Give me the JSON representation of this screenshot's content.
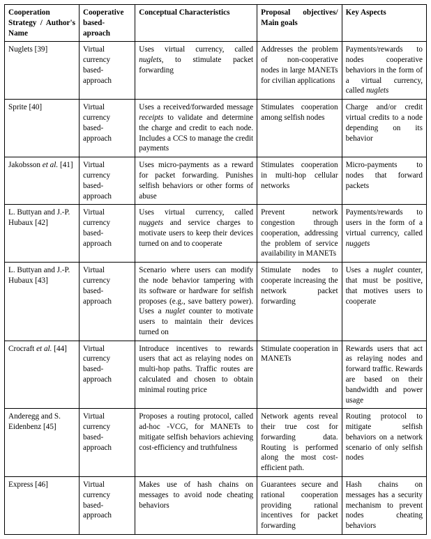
{
  "columns": [
    "Cooperation Strategy / Author's Name",
    "Cooperative based-aproach",
    "Conceptual Characteristics",
    "Proposal objectives/ Main goals",
    "Key Aspects"
  ],
  "rows": [
    {
      "strategy": "Nuglets [39]",
      "approach": "Virtual currency based-approach",
      "concept_pre": "Uses virtual currency, called ",
      "concept_it": "nuglets",
      "concept_post": ", to stimulate packet forwarding",
      "objectives": "Addresses the problem of non-cooperative nodes in large MANETs for civilian applications",
      "key_pre": "Payments/rewards to nodes cooperative behaviors in the form of a virtual currency, called ",
      "key_it": "nuglets",
      "key_post": ""
    },
    {
      "strategy": "Sprite [40]",
      "approach": "Virtual currency based-approach",
      "concept_pre": "Uses a received/forwarded message ",
      "concept_it": "receipts",
      "concept_post": " to validate and determine the charge and credit to each node. Includes a CCS to manage the credit payments",
      "objectives": "Stimulates cooperation among selfish nodes",
      "key_pre": "Charge and/or credit virtual credits to a node depending on its behavior",
      "key_it": "",
      "key_post": ""
    },
    {
      "strategy_pre": "Jakobsson ",
      "strategy_it": "et al.",
      "strategy_post": " [41]",
      "approach": "Virtual currency based-approach",
      "concept_pre": "Uses micro-payments as a reward for packet forwarding. Punishes selfish behaviors or other forms of abuse",
      "concept_it": "",
      "concept_post": "",
      "objectives": "Stimulates cooperation in multi-hop cellular networks",
      "key_pre": "Micro-payments to nodes that forward packets",
      "key_it": "",
      "key_post": ""
    },
    {
      "strategy": "L. Buttyan and J.-P. Hubaux [42]",
      "approach": "Virtual currency based-approach",
      "concept_pre": "Uses virtual currency, called ",
      "concept_it": "nuggets",
      "concept_post": " and service charges to motivate users to keep their devices turned on and to cooperate",
      "objectives": "Prevent network congestion through cooperation, addressing the problem of service availability in MANETs",
      "key_pre": "Payments/rewards to users in the form of a virtual currency, called ",
      "key_it": "nuggets",
      "key_post": ""
    },
    {
      "strategy": "L. Buttyan and J.-P. Hubaux [43]",
      "approach": "Virtual currency based-approach",
      "concept_pre": "Scenario where users can modify the node behavior tampering with its software or hardware for selfish proposes (e.g., save battery power). Uses a ",
      "concept_it": "nuglet",
      "concept_post": " counter to motivate users to maintain their devices turned on",
      "objectives": "Stimulate nodes to cooperate increasing the network packet forwarding",
      "key_pre": "Uses a ",
      "key_it": "nuglet",
      "key_post": " counter, that must be positive, that motives users to cooperate"
    },
    {
      "strategy_pre": "Crocraft ",
      "strategy_it": "et al.",
      "strategy_post": " [44]",
      "approach": "Virtual currency based-approach",
      "concept_pre": "Introduce incentives to rewards users that act as relaying nodes on multi-hop paths. Traffic routes are calculated and chosen to obtain minimal routing price",
      "concept_it": "",
      "concept_post": "",
      "objectives": "Stimulate cooperation in MANETs",
      "key_pre": "Rewards users that act as relaying nodes and forward traffic. Rewards are based on their bandwidth and power usage",
      "key_it": "",
      "key_post": ""
    },
    {
      "strategy": "Anderegg and S. Eidenbenz [45]",
      "approach": "Virtual currency based-approach",
      "concept_pre": "Proposes a routing protocol, called ad-hoc -VCG, for MANETs to mitigate selfish behaviors achieving cost-efficiency and truthfulness",
      "concept_it": "",
      "concept_post": "",
      "objectives": "Network agents reveal their true cost for forwarding data. Routing is performed along the most cost-efficient path.",
      "key_pre": "Routing protocol to mitigate selfish behaviors on a network scenario of only selfish nodes",
      "key_it": "",
      "key_post": ""
    },
    {
      "strategy": "Express [46]",
      "approach": "Virtual currency based-approach",
      "concept_pre": "Makes use of hash chains on messages to avoid node cheating behaviors",
      "concept_it": "",
      "concept_post": "",
      "objectives": "Guarantees secure and rational cooperation providing rational incentives for packet forwarding",
      "key_pre": "Hash chains on messages has a security mechanism to prevent nodes cheating behaviors",
      "key_it": "",
      "key_post": ""
    }
  ]
}
